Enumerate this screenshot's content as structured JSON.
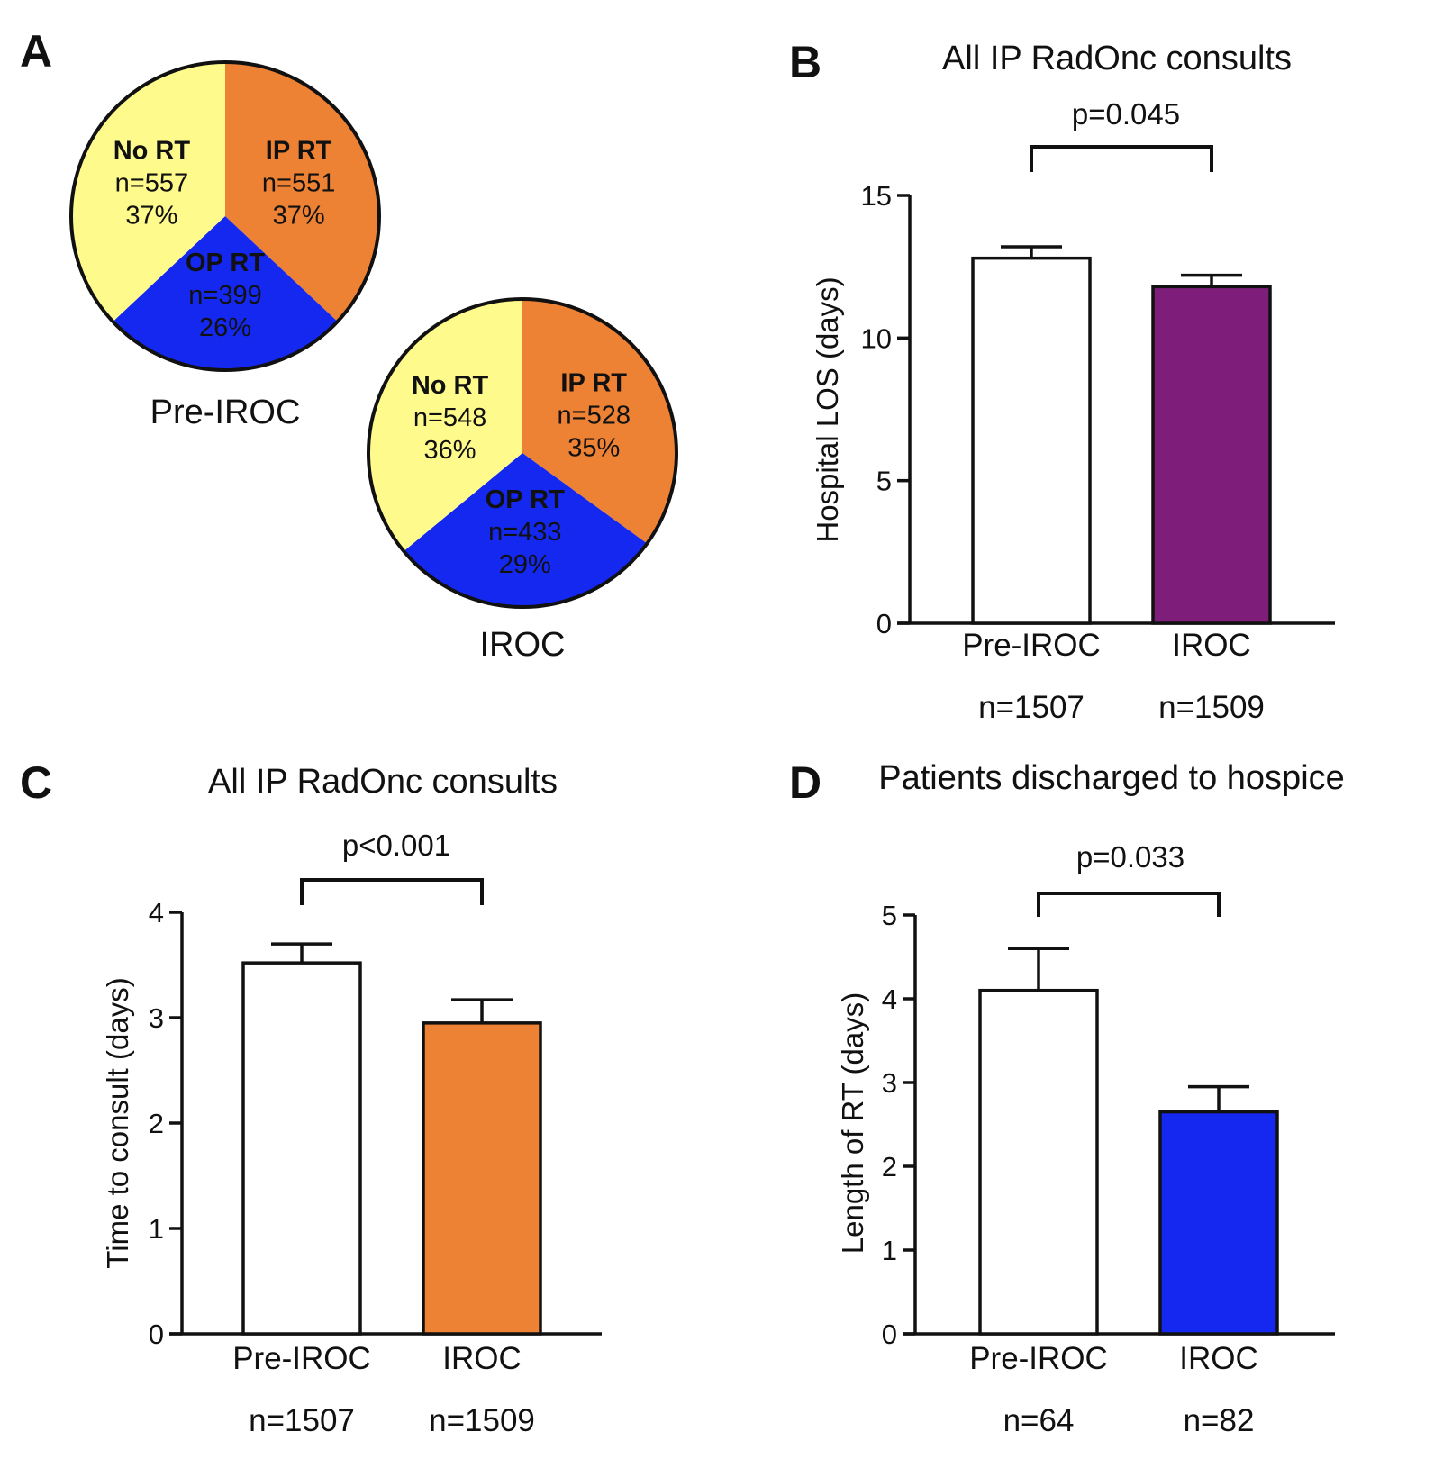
{
  "chart_data": [
    {
      "panel": "A",
      "type": "pie",
      "pies": [
        {
          "name": "Pre-IROC",
          "slices": [
            {
              "label": "IP RT",
              "n": "n=551",
              "pct": "37%",
              "value": 37,
              "color": "#ED8134"
            },
            {
              "label": "OP RT",
              "n": "n=399",
              "pct": "26%",
              "value": 26,
              "color": "#1428F0"
            },
            {
              "label": "No RT",
              "n": "n=557",
              "pct": "37%",
              "value": 37,
              "color": "#FFFA8C"
            }
          ]
        },
        {
          "name": "IROC",
          "slices": [
            {
              "label": "IP RT",
              "n": "n=528",
              "pct": "35%",
              "value": 35,
              "color": "#ED8134"
            },
            {
              "label": "OP RT",
              "n": "n=433",
              "pct": "29%",
              "value": 29,
              "color": "#1428F0"
            },
            {
              "label": "No RT",
              "n": "n=548",
              "pct": "36%",
              "value": 36,
              "color": "#FFFA8C"
            }
          ]
        }
      ]
    },
    {
      "panel": "B",
      "type": "bar",
      "title": "All IP RadOnc consults",
      "ylabel": "Hospital LOS (days)",
      "ylim": [
        0,
        15
      ],
      "yticks": [
        0,
        5,
        10,
        15
      ],
      "categories": [
        "Pre-IROC",
        "IROC"
      ],
      "counts": [
        "n=1507",
        "n=1509"
      ],
      "values": [
        12.8,
        11.8
      ],
      "errors": [
        0.4,
        0.4
      ],
      "colors": [
        "#FFFFFF",
        "#7E1D7A"
      ],
      "pvalue": "p=0.045"
    },
    {
      "panel": "C",
      "type": "bar",
      "title": "All IP RadOnc consults",
      "ylabel": "Time to consult (days)",
      "ylim": [
        0,
        4
      ],
      "yticks": [
        0,
        1,
        2,
        3,
        4
      ],
      "categories": [
        "Pre-IROC",
        "IROC"
      ],
      "counts": [
        "n=1507",
        "n=1509"
      ],
      "values": [
        3.52,
        2.95
      ],
      "errors": [
        0.18,
        0.22
      ],
      "colors": [
        "#FFFFFF",
        "#ED8134"
      ],
      "pvalue": "p<0.001"
    },
    {
      "panel": "D",
      "type": "bar",
      "title": "Patients discharged to hospice",
      "ylabel": "Length of RT (days)",
      "ylim": [
        0,
        5
      ],
      "yticks": [
        0,
        1,
        2,
        3,
        4,
        5
      ],
      "categories": [
        "Pre-IROC",
        "IROC"
      ],
      "counts": [
        "n=64",
        "n=82"
      ],
      "values": [
        4.1,
        2.65
      ],
      "errors": [
        0.5,
        0.3
      ],
      "colors": [
        "#FFFFFF",
        "#1428F0"
      ],
      "pvalue": "p=0.033"
    }
  ]
}
